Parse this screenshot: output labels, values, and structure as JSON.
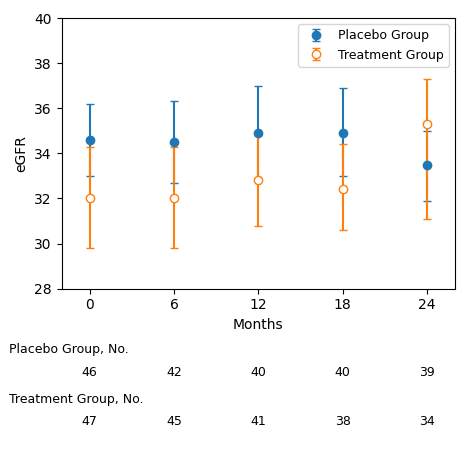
{
  "chart_data": {
    "type": "errorbar",
    "xlabel": "Months",
    "ylabel": "eGFR",
    "x": [
      0,
      6,
      12,
      18,
      24
    ],
    "xlim": [
      -2,
      26
    ],
    "xticks": [
      0,
      6,
      12,
      18,
      24
    ],
    "ylim": [
      28,
      40
    ],
    "yticks": [
      28,
      30,
      32,
      34,
      36,
      38,
      40
    ],
    "legend": "upper right",
    "series": [
      {
        "name": "Placebo Group",
        "marker": "filled circle",
        "values": [
          34.6,
          34.5,
          34.9,
          34.9,
          33.5
        ],
        "error_up": [
          1.6,
          1.8,
          2.1,
          2.0,
          1.5
        ],
        "error_down": [
          1.6,
          1.8,
          2.0,
          1.9,
          1.6
        ]
      },
      {
        "name": "Treatment Group",
        "marker": "open circle",
        "values": [
          32.0,
          32.0,
          32.8,
          32.4,
          35.3
        ],
        "error_up": [
          2.3,
          2.3,
          2.0,
          2.0,
          2.0
        ],
        "error_down": [
          2.2,
          2.2,
          2.0,
          1.8,
          4.2
        ]
      }
    ],
    "table": [
      {
        "label": "Placebo Group, No.",
        "values": [
          46,
          42,
          40,
          40,
          39
        ]
      },
      {
        "label": "Treatment Group, No.",
        "values": [
          47,
          45,
          41,
          38,
          34
        ]
      }
    ]
  }
}
